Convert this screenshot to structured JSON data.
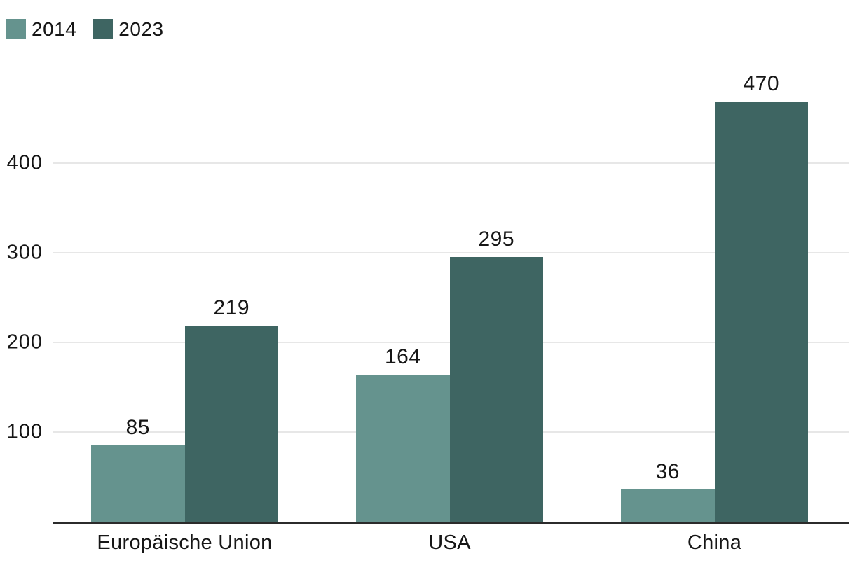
{
  "chart_data": {
    "type": "bar",
    "categories": [
      "Europäische Union",
      "USA",
      "China"
    ],
    "series": [
      {
        "name": "2014",
        "color": "#65938E",
        "values": [
          85,
          164,
          36
        ]
      },
      {
        "name": "2023",
        "color": "#3E6562",
        "values": [
          219,
          295,
          470
        ]
      }
    ],
    "ylim": [
      0,
      500
    ],
    "yticks": [
      100,
      200,
      300,
      400
    ],
    "grid": true,
    "value_labels": true,
    "legend_position": "top-left"
  },
  "colors": {
    "background": "#FFFFFF",
    "gridline": "#E7E7E7",
    "axis_line": "#2B2B2B",
    "text": "#161616",
    "series_2014": "#65938E",
    "series_2023": "#3E6562"
  }
}
